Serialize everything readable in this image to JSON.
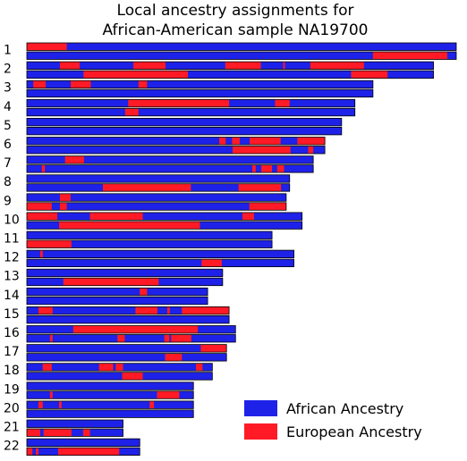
{
  "chart_data": {
    "type": "bar",
    "title": [
      "Local ancestry assignments for",
      "African-American sample NA19700"
    ],
    "xlabel": "",
    "ylabel": "",
    "grid": false,
    "legend_position": "bottom-right",
    "colors": {
      "African Ancestry": "#1e22e8",
      "European Ancestry": "#ff1a26"
    },
    "legend": [
      {
        "label": "African Ancestry",
        "color": "#1e22e8"
      },
      {
        "label": "European Ancestry",
        "color": "#ff1a26"
      }
    ],
    "units": "fraction of chromosome 1 length",
    "chromosomes": [
      {
        "label": "1",
        "length": 1.0,
        "haplotypes": [
          [
            [
              0.0,
              0.093,
              "Eur"
            ]
          ],
          [
            [
              0.806,
              0.979,
              "Eur"
            ]
          ]
        ]
      },
      {
        "label": "2",
        "length": 0.947,
        "haplotypes": [
          [
            [
              0.077,
              0.123,
              "Eur"
            ],
            [
              0.248,
              0.323,
              "Eur"
            ],
            [
              0.462,
              0.545,
              "Eur"
            ],
            [
              0.597,
              0.601,
              "Eur"
            ],
            [
              0.66,
              0.785,
              "Eur"
            ]
          ],
          [
            [
              0.132,
              0.375,
              "Eur"
            ],
            [
              0.755,
              0.84,
              "Eur"
            ]
          ]
        ]
      },
      {
        "label": "3",
        "length": 0.806,
        "haplotypes": [
          [
            [
              0.015,
              0.044,
              "Eur"
            ],
            [
              0.102,
              0.149,
              "Eur"
            ],
            [
              0.26,
              0.28,
              "Eur"
            ]
          ],
          []
        ]
      },
      {
        "label": "4",
        "length": 0.764,
        "haplotypes": [
          [
            [
              0.236,
              0.471,
              "Eur"
            ],
            [
              0.578,
              0.612,
              "Eur"
            ]
          ],
          [
            [
              0.229,
              0.26,
              "Eur"
            ]
          ]
        ]
      },
      {
        "label": "5",
        "length": 0.733,
        "haplotypes": [
          [],
          []
        ]
      },
      {
        "label": "6",
        "length": 0.694,
        "haplotypes": [
          [
            [
              0.448,
              0.463,
              "Eur"
            ],
            [
              0.478,
              0.496,
              "Eur"
            ],
            [
              0.519,
              0.591,
              "Eur"
            ],
            [
              0.63,
              0.694,
              "Eur"
            ]
          ],
          [
            [
              0.479,
              0.614,
              "Eur"
            ],
            [
              0.655,
              0.667,
              "Eur"
            ]
          ]
        ]
      },
      {
        "label": "7",
        "length": 0.667,
        "haplotypes": [
          [
            [
              0.089,
              0.133,
              "Eur"
            ]
          ],
          [
            [
              0.035,
              0.042,
              "Eur"
            ],
            [
              0.525,
              0.533,
              "Eur"
            ],
            [
              0.546,
              0.571,
              "Eur"
            ],
            [
              0.583,
              0.599,
              "Eur"
            ]
          ]
        ]
      },
      {
        "label": "8",
        "length": 0.612,
        "haplotypes": [
          [],
          [
            [
              0.177,
              0.382,
              "Eur"
            ],
            [
              0.493,
              0.592,
              "Eur"
            ]
          ]
        ]
      },
      {
        "label": "9",
        "length": 0.604,
        "haplotypes": [
          [
            [
              0.077,
              0.102,
              "Eur"
            ]
          ],
          [
            [
              0.0,
              0.058,
              "Eur"
            ],
            [
              0.077,
              0.093,
              "Eur"
            ],
            [
              0.518,
              0.604,
              "Eur"
            ]
          ]
        ]
      },
      {
        "label": "10",
        "length": 0.641,
        "haplotypes": [
          [
            [
              0.0,
              0.071,
              "Eur"
            ],
            [
              0.147,
              0.27,
              "Eur"
            ],
            [
              0.502,
              0.529,
              "Eur"
            ]
          ],
          [
            [
              0.075,
              0.403,
              "Eur"
            ]
          ]
        ]
      },
      {
        "label": "11",
        "length": 0.571,
        "haplotypes": [
          [],
          [
            [
              0.0,
              0.104,
              "Eur"
            ]
          ]
        ]
      },
      {
        "label": "12",
        "length": 0.622,
        "haplotypes": [
          [
            [
              0.031,
              0.037,
              "Eur"
            ]
          ],
          [
            [
              0.407,
              0.454,
              "Eur"
            ]
          ]
        ]
      },
      {
        "label": "13",
        "length": 0.456,
        "haplotypes": [
          [],
          [
            [
              0.085,
              0.307,
              "Eur"
            ]
          ]
        ]
      },
      {
        "label": "14",
        "length": 0.421,
        "haplotypes": [
          [
            [
              0.263,
              0.28,
              "Eur"
            ]
          ],
          []
        ]
      },
      {
        "label": "15",
        "length": 0.471,
        "haplotypes": [
          [
            [
              0.027,
              0.06,
              "Eur"
            ],
            [
              0.253,
              0.304,
              "Eur"
            ],
            [
              0.327,
              0.333,
              "Eur"
            ],
            [
              0.361,
              0.471,
              "Eur"
            ]
          ],
          []
        ]
      },
      {
        "label": "16",
        "length": 0.486,
        "haplotypes": [
          [
            [
              0.108,
              0.398,
              "Eur"
            ]
          ],
          [
            [
              0.054,
              0.06,
              "Eur"
            ],
            [
              0.211,
              0.228,
              "Eur"
            ],
            [
              0.32,
              0.332,
              "Eur"
            ],
            [
              0.336,
              0.383,
              "Eur"
            ]
          ]
        ]
      },
      {
        "label": "17",
        "length": 0.465,
        "haplotypes": [
          [
            [
              0.405,
              0.465,
              "Eur"
            ]
          ],
          [
            [
              0.322,
              0.361,
              "Eur"
            ]
          ]
        ]
      },
      {
        "label": "18",
        "length": 0.432,
        "haplotypes": [
          [
            [
              0.037,
              0.058,
              "Eur"
            ],
            [
              0.168,
              0.201,
              "Eur"
            ],
            [
              0.207,
              0.224,
              "Eur"
            ],
            [
              0.394,
              0.409,
              "Eur"
            ]
          ],
          [
            [
              0.222,
              0.27,
              "Eur"
            ]
          ]
        ]
      },
      {
        "label": "19",
        "length": 0.388,
        "haplotypes": [
          [],
          [
            [
              0.054,
              0.06,
              "Eur"
            ],
            [
              0.303,
              0.355,
              "Eur"
            ]
          ]
        ]
      },
      {
        "label": "20",
        "length": 0.388,
        "haplotypes": [
          [
            [
              0.027,
              0.037,
              "Eur"
            ],
            [
              0.075,
              0.081,
              "Eur"
            ],
            [
              0.286,
              0.296,
              "Eur"
            ]
          ],
          []
        ]
      },
      {
        "label": "21",
        "length": 0.224,
        "haplotypes": [
          [],
          [
            [
              0.0,
              0.031,
              "Eur"
            ],
            [
              0.039,
              0.104,
              "Eur"
            ],
            [
              0.131,
              0.147,
              "Eur"
            ]
          ]
        ]
      },
      {
        "label": "22",
        "length": 0.263,
        "haplotypes": [
          [],
          [
            [
              0.0,
              0.013,
              "Eur"
            ],
            [
              0.021,
              0.027,
              "Eur"
            ],
            [
              0.073,
              0.215,
              "Eur"
            ]
          ]
        ]
      }
    ]
  }
}
